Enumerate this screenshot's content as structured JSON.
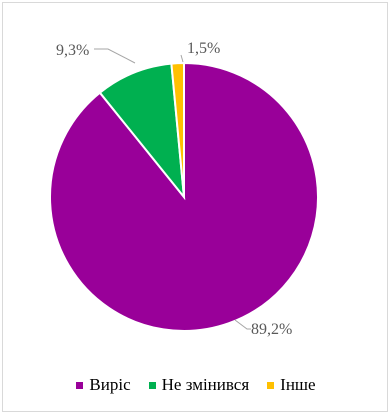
{
  "chart_data": {
    "type": "pie",
    "title": "",
    "slices": [
      {
        "name": "Виріс",
        "value": 89.2,
        "label": "89,2%",
        "color": "#990099"
      },
      {
        "name": "Не змінився",
        "value": 9.3,
        "label": "9,3%",
        "color": "#00b050"
      },
      {
        "name": "Інше",
        "value": 1.5,
        "label": "1,5%",
        "color": "#ffc000"
      }
    ],
    "legend": {
      "position": "bottom",
      "entries": [
        "Виріс",
        "Не змінився",
        "Інше"
      ]
    },
    "start_angle_deg": 0,
    "direction": "clockwise"
  }
}
